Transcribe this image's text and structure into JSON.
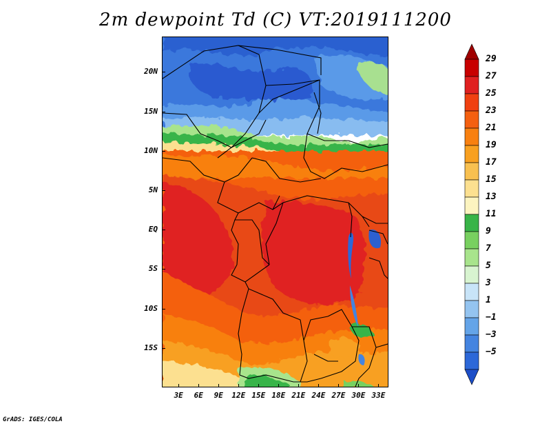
{
  "title": "2m dewpoint Td (C) VT:2019111200",
  "credit": "GrADS: IGES/COLA",
  "map": {
    "variable": "2m dewpoint",
    "units": "C",
    "valid_time": "2019111200",
    "lat_labels": [
      "20N",
      "15N",
      "10N",
      "5N",
      "EQ",
      "5S",
      "10S",
      "15S"
    ],
    "lat_values": [
      20,
      15,
      10,
      5,
      0,
      -5,
      -10,
      -15
    ],
    "lon_labels": [
      "3E",
      "6E",
      "9E",
      "12E",
      "15E",
      "18E",
      "21E",
      "24E",
      "27E",
      "30E",
      "33E"
    ],
    "lon_values": [
      3,
      6,
      9,
      12,
      15,
      18,
      21,
      24,
      27,
      30,
      33
    ],
    "lat_range": [
      -20,
      24.5
    ],
    "lon_range": [
      0.5,
      34.5
    ]
  },
  "colorbar": {
    "labels": [
      "29",
      "27",
      "25",
      "23",
      "21",
      "19",
      "17",
      "15",
      "13",
      "11",
      "9",
      "7",
      "5",
      "3",
      "1",
      "−1",
      "−3",
      "−5"
    ],
    "colors": [
      "#a00000",
      "#c80000",
      "#e02020",
      "#f04010",
      "#f46010",
      "#f88010",
      "#f8a020",
      "#f8c050",
      "#fce090",
      "#fcf4c0",
      "#38b448",
      "#78d060",
      "#a8e48c",
      "#d8f4d0",
      "#c8e4f8",
      "#94c4f0",
      "#64a4e8",
      "#4484e0",
      "#2c68d8",
      "#1c4ec8"
    ]
  }
}
